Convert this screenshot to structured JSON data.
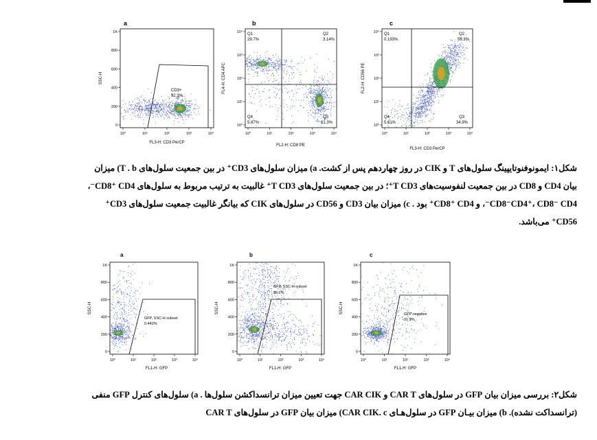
{
  "figure1": {
    "panels": [
      {
        "letter": "a",
        "ylabel": "SSC-H",
        "xlabel": "FL3-H: CD3 PerCP",
        "gate_label": "CD3+",
        "gate_value": "92.3%"
      },
      {
        "letter": "b",
        "ylabel": "FL4-H: CD4 APC",
        "xlabel": "FL2-H: CD8 PE",
        "quadrants": [
          {
            "name": "Q1",
            "value": "29.7%"
          },
          {
            "name": "Q2",
            "value": "3.14%"
          },
          {
            "name": "Q3",
            "value": "61.3%"
          },
          {
            "name": "Q4",
            "value": "5.87%"
          }
        ]
      },
      {
        "letter": "c",
        "ylabel": "FL2-H: CD56 PE",
        "xlabel": "FL3-H: CD3 PerCP",
        "quadrants": [
          {
            "name": "Q1",
            "value": "0.193%"
          },
          {
            "name": "Q2",
            "value": "59.3%"
          },
          {
            "name": "Q3",
            "value": "34.9%"
          },
          {
            "name": "Q4",
            "value": "5.61%"
          }
        ]
      }
    ],
    "linear_ticks": [
      "0",
      "200",
      "400",
      "600",
      "800",
      "1K"
    ],
    "log_ticks": [
      "10⁰",
      "10¹",
      "10²",
      "10³",
      "10⁴"
    ]
  },
  "caption1": {
    "line1": "شکل۱: ایمونوفنوتایپینگ سلول‌های T و CIK در روز چهاردهم پس از کشت. a) میزان سلول‌های CD3⁺ در بین جمعیت سلول‌های T . b) میزان",
    "line2": "بیان CD4 و CD8 در بین جمعیت لنفوسیت‌های T CD3⁺؛ در بین جمعیت سلول‌های T CD3⁺ غالبیت به ترتیب مربوط به سلول‌های CD8⁺ CD4⁻،",
    "line3": "CD8⁻CD4⁺، CD8⁻ CD4⁻، و CD8⁺ CD4⁺ بود . c) میزان بیان CD3 و CD56 در سلول‌های CIK که بیانگر غالبیت جمعیت سلول‌های CD3⁺",
    "line4": "CD56⁺ می‌باشد."
  },
  "figure2": {
    "panels": [
      {
        "letter": "a",
        "ylabel": "SSC-H",
        "xlabel": "FL1-H: GFP",
        "gate_label": "GFP, SSC-H subset",
        "gate_value": "0.442%"
      },
      {
        "letter": "b",
        "ylabel": "SSC-H",
        "xlabel": "FL1-H: GFP",
        "gate_label": "GFP, SSC-H subset",
        "gate_value": "38.2%"
      },
      {
        "letter": "c",
        "ylabel": "SSC-H",
        "xlabel": "FL1-H: GFP",
        "gate_label": "GFP negative",
        "gate_value": "31.9%"
      }
    ]
  },
  "caption2": {
    "line1": "شکل۲: بررسی میزان بیان GFP در سلول‌های CAR T و CAR CIK جهت تعیین میزان ترانسداکشن سلول‌ها . a) سلول‌های کنترل GFP منفی",
    "line2": "(ترانسداکت نشده). b) میزان بیـان GFP در سلول‌هـای CAR CIK. c) میزان بیان GFP در سلول‌های CAR T"
  },
  "colors": {
    "dots": "#3a4fc8",
    "dense": "#2a9a3a",
    "core": "#e8a020"
  }
}
